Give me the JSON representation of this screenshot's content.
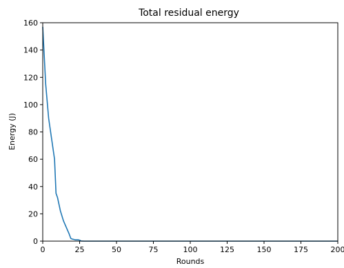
{
  "chart_data": {
    "type": "line",
    "title": "Total residual energy",
    "xlabel": "Rounds",
    "ylabel": "Energy (J)",
    "xlim": [
      0,
      200
    ],
    "ylim": [
      0,
      160
    ],
    "xticks": [
      0,
      25,
      50,
      75,
      100,
      125,
      150,
      175,
      200
    ],
    "yticks": [
      0,
      20,
      40,
      60,
      80,
      100,
      120,
      140,
      160
    ],
    "grid": false,
    "line_color": "#1f77b4",
    "series": [
      {
        "x": [
          0,
          2,
          4,
          6,
          8,
          9,
          10,
          12,
          14,
          16,
          18,
          19,
          20,
          22,
          24,
          25,
          26,
          28,
          30,
          40,
          60,
          80,
          100,
          150,
          200
        ],
        "y": [
          157,
          115,
          90,
          75,
          60,
          35,
          32,
          22,
          15,
          10,
          5,
          2,
          1.5,
          1,
          1,
          0.7,
          0.1,
          0,
          0,
          0,
          0,
          0,
          0,
          0,
          0
        ]
      }
    ]
  }
}
